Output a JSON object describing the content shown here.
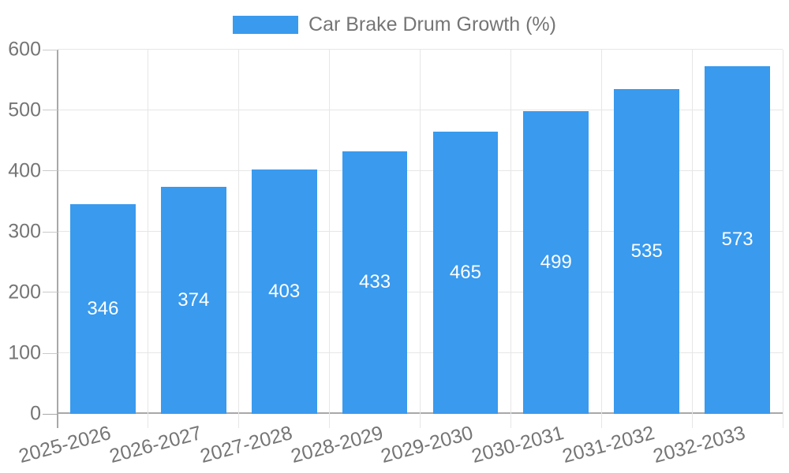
{
  "legend": {
    "label": "Car Brake Drum Growth (%)"
  },
  "chart_data": {
    "type": "bar",
    "title": "Car Brake Drum Growth (%)",
    "categories": [
      "2025-2026",
      "2026-2027",
      "2027-2028",
      "2028-2029",
      "2029-2030",
      "2030-2031",
      "2031-2032",
      "2032-2033"
    ],
    "values": [
      346,
      374,
      403,
      433,
      465,
      499,
      535,
      573
    ],
    "value_labels": [
      "346",
      "374",
      "403",
      "433",
      "465",
      "499",
      "535",
      "573"
    ],
    "yticks": [
      0,
      100,
      200,
      300,
      400,
      500,
      600
    ],
    "ylim": [
      0,
      600
    ],
    "xlabel": "",
    "ylabel": "",
    "grid": true,
    "legend_position": "top",
    "x_label_rotation_deg": -15,
    "colors": {
      "bar": "#399AEE",
      "value_label": "#FFFFFF",
      "axis_text": "#757575",
      "gridline": "#E6E6E6",
      "axis_line": "#A8A8A8",
      "tick": "#C9C9C9"
    }
  }
}
